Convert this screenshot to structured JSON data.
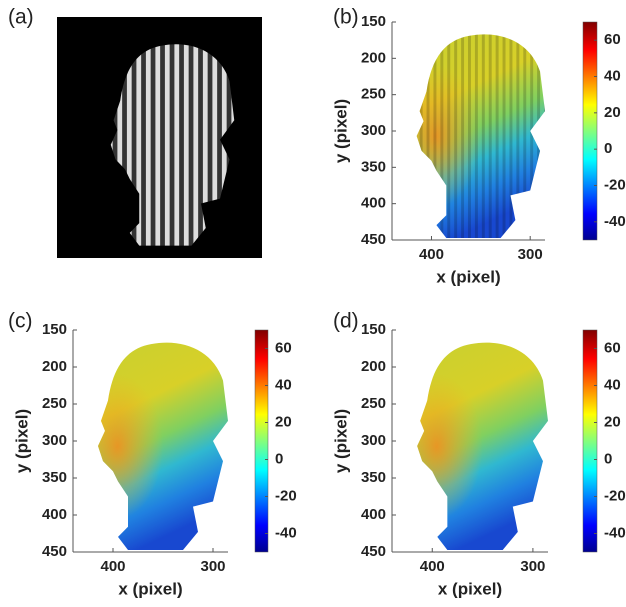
{
  "chart_data": [
    {
      "type": "image",
      "label": "(a)"
    },
    {
      "type": "surface",
      "label": "(b)",
      "xlabel": "x (pixel)",
      "ylabel": "y (pixel)",
      "xlim": [
        440,
        285
      ],
      "ylim": [
        150,
        450
      ],
      "xticks": [
        400,
        300
      ],
      "yticks": [
        150,
        200,
        250,
        300,
        350,
        400,
        450
      ],
      "clim": [
        -50,
        70
      ],
      "cticks": [
        -40,
        -20,
        0,
        20,
        40,
        60
      ],
      "colormap": "jet",
      "fringes": true
    },
    {
      "type": "surface",
      "label": "(c)",
      "xlabel": "x (pixel)",
      "ylabel": "y (pixel)",
      "xlim": [
        440,
        285
      ],
      "ylim": [
        150,
        450
      ],
      "xticks": [
        400,
        300
      ],
      "yticks": [
        150,
        200,
        250,
        300,
        350,
        400,
        450
      ],
      "clim": [
        -50,
        70
      ],
      "cticks": [
        -40,
        -20,
        0,
        20,
        40,
        60
      ],
      "colormap": "jet",
      "fringes": false
    },
    {
      "type": "surface",
      "label": "(d)",
      "xlabel": "x (pixel)",
      "ylabel": "y (pixel)",
      "xlim": [
        440,
        285
      ],
      "ylim": [
        150,
        450
      ],
      "xticks": [
        400,
        300
      ],
      "yticks": [
        150,
        200,
        250,
        300,
        350,
        400,
        450
      ],
      "clim": [
        -50,
        70
      ],
      "cticks": [
        -40,
        -20,
        0,
        20,
        40,
        60
      ],
      "colormap": "jet",
      "fringes": false
    }
  ]
}
